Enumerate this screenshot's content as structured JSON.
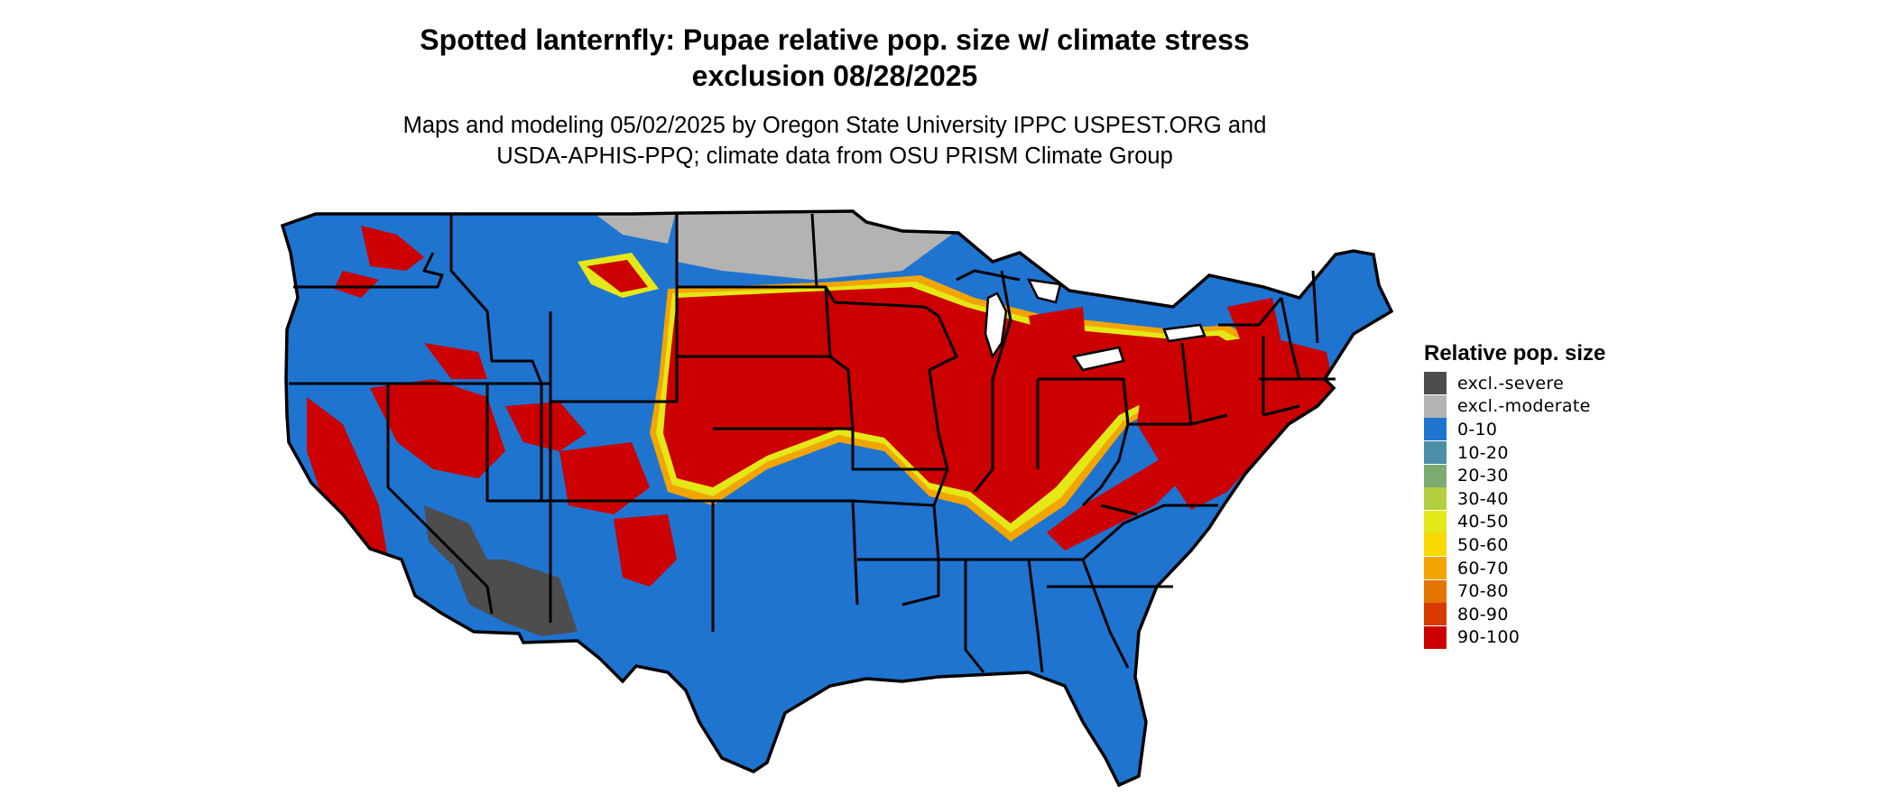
{
  "title": "Spotted lanternfly: Pupae relative pop. size w/ climate stress exclusion 08/28/2025",
  "subtitle": "Maps and modeling 05/02/2025 by Oregon State University IPPC USPEST.ORG and USDA-APHIS-PPQ; climate data from OSU PRISM Climate Group",
  "legend": {
    "title": "Relative pop. size",
    "items": [
      {
        "label": "excl.-severe",
        "color": "#4d4d4d"
      },
      {
        "label": "excl.-moderate",
        "color": "#b3b3b3"
      },
      {
        "label": "0-10",
        "color": "#1f74d0"
      },
      {
        "label": "10-20",
        "color": "#4b8fa6"
      },
      {
        "label": "20-30",
        "color": "#7bab70"
      },
      {
        "label": "30-40",
        "color": "#b2cf3d"
      },
      {
        "label": "40-50",
        "color": "#e3e816"
      },
      {
        "label": "50-60",
        "color": "#f7d800"
      },
      {
        "label": "60-70",
        "color": "#f2a500"
      },
      {
        "label": "70-80",
        "color": "#e67400"
      },
      {
        "label": "80-90",
        "color": "#d93a00"
      },
      {
        "label": "90-100",
        "color": "#cc0000"
      }
    ]
  }
}
